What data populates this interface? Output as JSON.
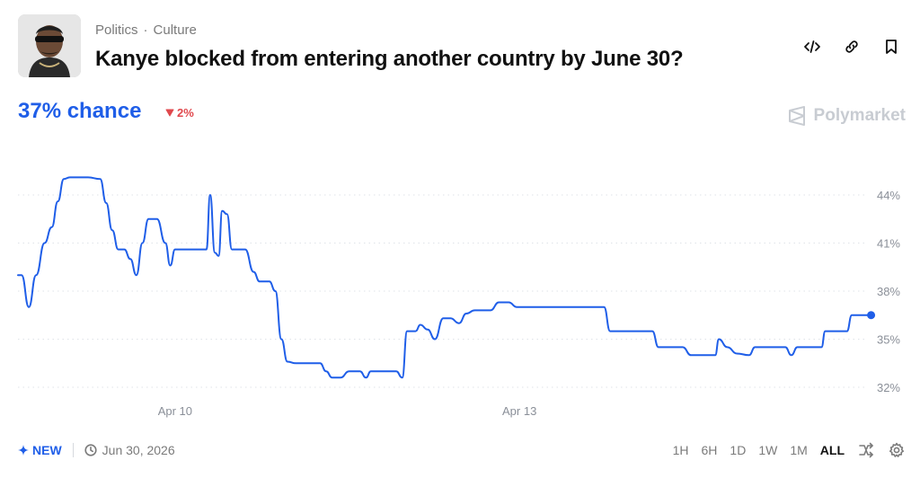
{
  "header": {
    "tags": [
      "Politics",
      "Culture"
    ],
    "title": "Kanye blocked from entering another country by June 30?"
  },
  "summary": {
    "chance_label": "37% chance",
    "delta_label": "2%",
    "delta_color": "#e0484d",
    "accent": "#1f5ee8"
  },
  "brand": {
    "name": "Polymarket"
  },
  "footer": {
    "new_label": "NEW",
    "end_date": "Jun 30, 2026",
    "ranges": [
      "1H",
      "6H",
      "1D",
      "1W",
      "1M",
      "ALL"
    ],
    "active_range": "ALL"
  },
  "icons": [
    "embed-icon",
    "link-icon",
    "bookmark-icon",
    "sparkle-icon",
    "clock-icon",
    "shuffle-icon",
    "gear-icon"
  ],
  "chart_data": {
    "type": "line",
    "title": "",
    "xlabel": "",
    "ylabel": "",
    "x_ticks": [
      {
        "label": "Apr 10",
        "t": 1.3
      },
      {
        "label": "Apr 13",
        "t": 4.15
      }
    ],
    "y_ticks": [
      "44%",
      "41%",
      "38%",
      "35%",
      "32%"
    ],
    "y_tick_values": [
      44,
      41,
      38,
      35,
      32
    ],
    "ylim": [
      31.2,
      45.6
    ],
    "xlim": [
      0,
      6.9
    ],
    "grid": "horizontal-dotted",
    "series": [
      {
        "color": "#1f5ee8",
        "points": [
          [
            0.0,
            39.0
          ],
          [
            0.03,
            39.0
          ],
          [
            0.09,
            37.0
          ],
          [
            0.15,
            39.0
          ],
          [
            0.22,
            41.0
          ],
          [
            0.28,
            42.0
          ],
          [
            0.33,
            43.6
          ],
          [
            0.38,
            45.0
          ],
          [
            0.43,
            45.1
          ],
          [
            0.58,
            45.1
          ],
          [
            0.68,
            45.0
          ],
          [
            0.73,
            43.5
          ],
          [
            0.78,
            41.8
          ],
          [
            0.83,
            40.6
          ],
          [
            0.88,
            40.6
          ],
          [
            0.93,
            40.0
          ],
          [
            0.98,
            39.0
          ],
          [
            1.03,
            41.0
          ],
          [
            1.08,
            42.5
          ],
          [
            1.15,
            42.5
          ],
          [
            1.22,
            41.0
          ],
          [
            1.26,
            39.6
          ],
          [
            1.3,
            40.6
          ],
          [
            1.42,
            40.6
          ],
          [
            1.56,
            40.6
          ],
          [
            1.59,
            44.0
          ],
          [
            1.63,
            40.4
          ],
          [
            1.66,
            40.2
          ],
          [
            1.69,
            43.0
          ],
          [
            1.73,
            42.8
          ],
          [
            1.77,
            40.6
          ],
          [
            1.88,
            40.6
          ],
          [
            1.95,
            39.2
          ],
          [
            2.0,
            38.6
          ],
          [
            2.08,
            38.6
          ],
          [
            2.13,
            38.0
          ],
          [
            2.18,
            35.0
          ],
          [
            2.23,
            33.6
          ],
          [
            2.3,
            33.5
          ],
          [
            2.5,
            33.5
          ],
          [
            2.55,
            33.0
          ],
          [
            2.6,
            32.6
          ],
          [
            2.67,
            32.6
          ],
          [
            2.74,
            33.0
          ],
          [
            2.83,
            33.0
          ],
          [
            2.88,
            32.6
          ],
          [
            2.92,
            33.0
          ],
          [
            3.04,
            33.0
          ],
          [
            3.13,
            33.0
          ],
          [
            3.18,
            32.6
          ],
          [
            3.22,
            35.5
          ],
          [
            3.29,
            35.5
          ],
          [
            3.33,
            35.9
          ],
          [
            3.39,
            35.6
          ],
          [
            3.45,
            35.0
          ],
          [
            3.52,
            36.3
          ],
          [
            3.58,
            36.3
          ],
          [
            3.65,
            36.0
          ],
          [
            3.71,
            36.6
          ],
          [
            3.78,
            36.8
          ],
          [
            3.91,
            36.8
          ],
          [
            3.98,
            37.3
          ],
          [
            4.06,
            37.3
          ],
          [
            4.13,
            37.0
          ],
          [
            4.35,
            37.0
          ],
          [
            4.85,
            37.0
          ],
          [
            4.9,
            35.5
          ],
          [
            5.02,
            35.5
          ],
          [
            5.25,
            35.5
          ],
          [
            5.3,
            34.5
          ],
          [
            5.5,
            34.5
          ],
          [
            5.57,
            34.0
          ],
          [
            5.77,
            34.0
          ],
          [
            5.8,
            35.0
          ],
          [
            5.87,
            34.5
          ],
          [
            5.95,
            34.1
          ],
          [
            6.05,
            34.0
          ],
          [
            6.1,
            34.5
          ],
          [
            6.35,
            34.5
          ],
          [
            6.4,
            34.0
          ],
          [
            6.45,
            34.5
          ],
          [
            6.65,
            34.5
          ],
          [
            6.68,
            35.5
          ],
          [
            6.86,
            35.5
          ],
          [
            6.9,
            36.5
          ],
          [
            7.06,
            36.5
          ]
        ]
      }
    ]
  }
}
